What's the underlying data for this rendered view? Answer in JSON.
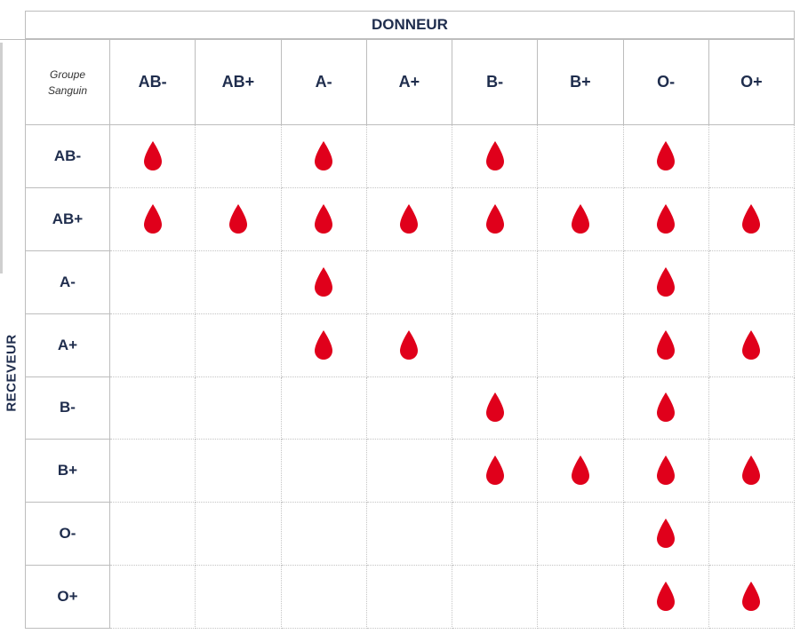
{
  "title": "DONNEUR",
  "receiver_label": "RECEVEUR",
  "corner": {
    "line1": "Groupe",
    "line2": "Sanguin"
  },
  "donors": [
    "AB-",
    "AB+",
    "A-",
    "A+",
    "B-",
    "B+",
    "O-",
    "O+"
  ],
  "rows": [
    {
      "group": "AB-",
      "compatible": [
        1,
        0,
        1,
        0,
        1,
        0,
        1,
        0
      ]
    },
    {
      "group": "AB+",
      "compatible": [
        1,
        1,
        1,
        1,
        1,
        1,
        1,
        1
      ]
    },
    {
      "group": "A-",
      "compatible": [
        0,
        0,
        1,
        0,
        0,
        0,
        1,
        0
      ]
    },
    {
      "group": "A+",
      "compatible": [
        0,
        0,
        1,
        1,
        0,
        0,
        1,
        1
      ]
    },
    {
      "group": "B-",
      "compatible": [
        0,
        0,
        0,
        0,
        1,
        0,
        1,
        0
      ]
    },
    {
      "group": "B+",
      "compatible": [
        0,
        0,
        0,
        0,
        1,
        1,
        1,
        1
      ]
    },
    {
      "group": "O-",
      "compatible": [
        0,
        0,
        0,
        0,
        0,
        0,
        1,
        0
      ]
    },
    {
      "group": "O+",
      "compatible": [
        0,
        0,
        0,
        0,
        0,
        0,
        1,
        1
      ]
    }
  ],
  "colors": {
    "drop": "#e0001b",
    "text": "#1f2d4d",
    "border": "#bdbdbd"
  },
  "icon": "blood-drop-icon"
}
